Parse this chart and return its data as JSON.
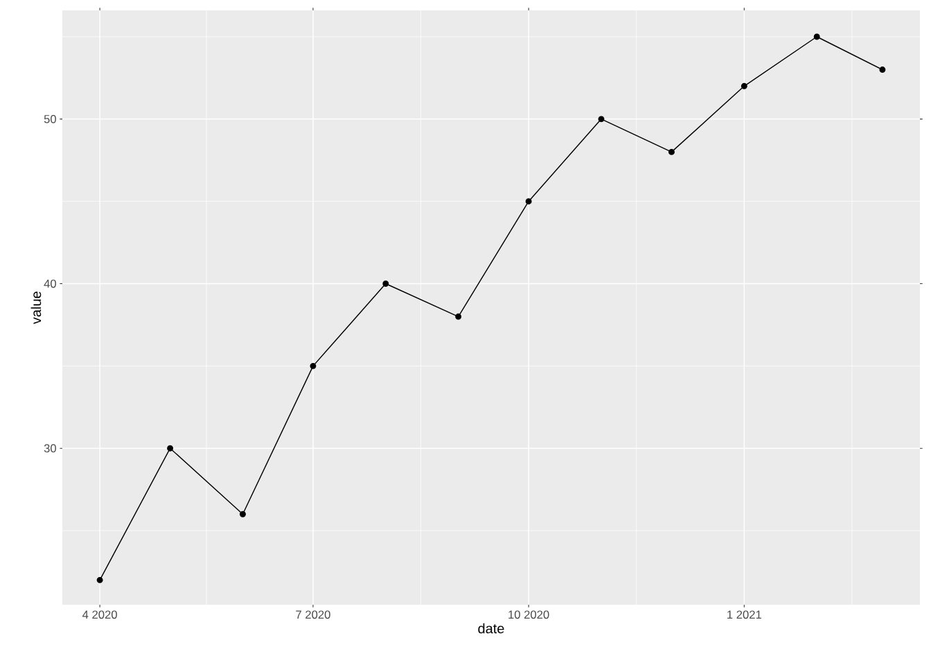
{
  "chart_data": {
    "type": "line",
    "xlabel": "date",
    "ylabel": "value",
    "x": [
      "2020-04-01",
      "2020-05-01",
      "2020-06-01",
      "2020-07-01",
      "2020-08-01",
      "2020-09-01",
      "2020-10-01",
      "2020-11-01",
      "2020-12-01",
      "2021-01-01",
      "2021-02-01",
      "2021-03-01"
    ],
    "values": [
      22,
      30,
      26,
      35,
      40,
      38,
      45,
      50,
      48,
      52,
      55,
      53
    ],
    "color": "#000000",
    "marker": "circle",
    "line_style": "solid",
    "grid": true,
    "xlim": [
      "2020-03-16",
      "2021-03-17"
    ],
    "ylim": [
      20.5,
      56.6
    ],
    "xticks": [
      {
        "value": "2020-04-01",
        "label": "4 2020"
      },
      {
        "value": "2020-07-01",
        "label": "7 2020"
      },
      {
        "value": "2020-10-01",
        "label": "10 2020"
      },
      {
        "value": "2021-01-01",
        "label": "1 2021"
      }
    ],
    "yticks": [
      30,
      40,
      50
    ]
  }
}
